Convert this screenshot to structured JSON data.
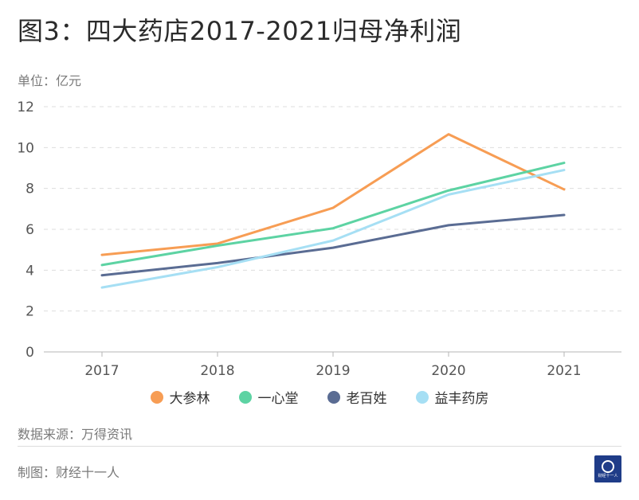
{
  "title": "图3：四大药店2017-2021归母净利润",
  "unit_label": "单位：亿元",
  "source": "数据来源：万得资讯",
  "maker": "制图：财经十一人",
  "logo_text": "财经十一人",
  "chart_data": {
    "type": "line",
    "categories": [
      "2017",
      "2018",
      "2019",
      "2020",
      "2021"
    ],
    "ylim": [
      0,
      12
    ],
    "yticks": [
      0,
      2,
      4,
      6,
      8,
      10,
      12
    ],
    "ytick_labels": [
      "0",
      "2",
      "4",
      "6",
      "8",
      "10",
      "12"
    ],
    "series": [
      {
        "name": "大参林",
        "color": "#f79d54",
        "values": [
          4.75,
          5.3,
          7.05,
          10.65,
          7.95
        ]
      },
      {
        "name": "一心堂",
        "color": "#5dd3a3",
        "values": [
          4.25,
          5.2,
          6.05,
          7.9,
          9.25
        ]
      },
      {
        "name": "老百姓",
        "color": "#5a6c93",
        "values": [
          3.75,
          4.35,
          5.1,
          6.2,
          6.7
        ]
      },
      {
        "name": "益丰药房",
        "color": "#a6dff4",
        "values": [
          3.15,
          4.15,
          5.45,
          7.7,
          8.9
        ]
      }
    ]
  }
}
